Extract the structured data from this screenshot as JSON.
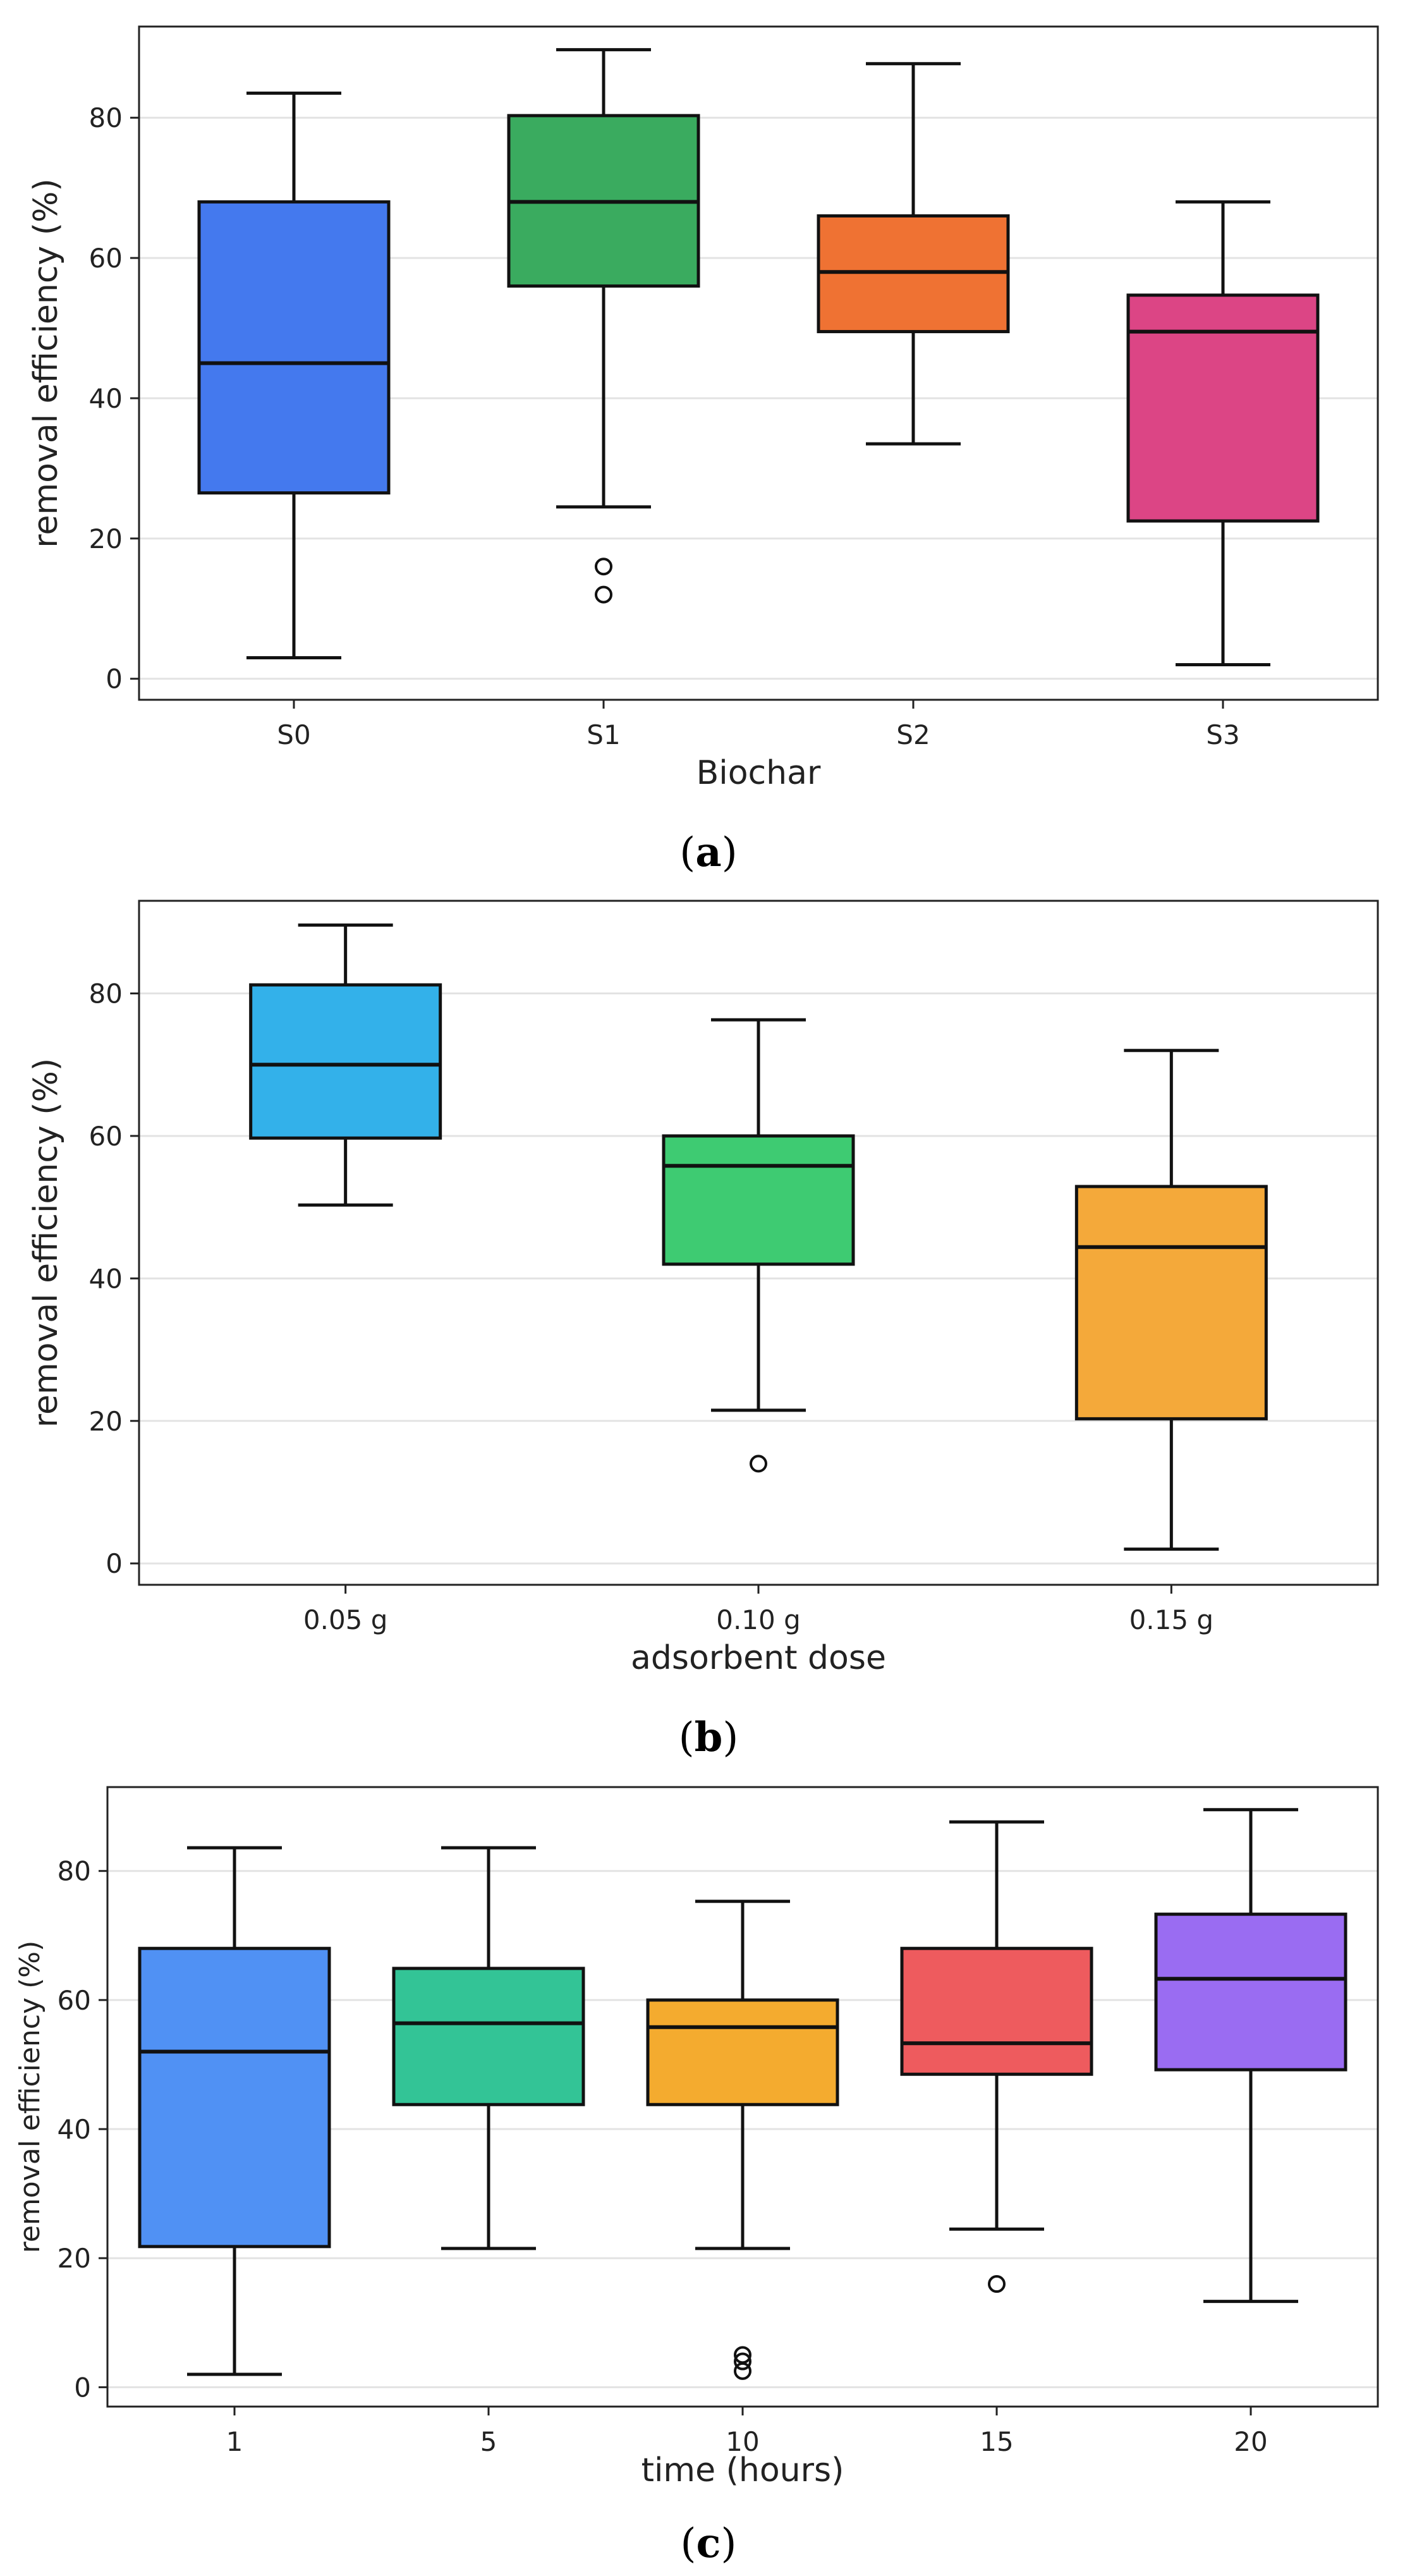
{
  "chart_data": [
    {
      "type": "boxplot",
      "panel": "a",
      "caption": "a",
      "xlabel": "Biochar",
      "ylabel": "removal efficiency (%)",
      "ylim": [
        -3,
        93
      ],
      "yticks": [
        0,
        20,
        40,
        60,
        80
      ],
      "grid": "horizontal",
      "boxes": [
        {
          "label": "S0",
          "color": "#4479ee",
          "whisker_low": 3,
          "q1": 26.5,
          "median": 45,
          "q3": 68,
          "whisker_high": 83.5,
          "outliers": []
        },
        {
          "label": "S1",
          "color": "#3aab5f",
          "whisker_low": 24.5,
          "q1": 56,
          "median": 68,
          "q3": 80.3,
          "whisker_high": 89.7,
          "outliers": [
            16,
            12
          ]
        },
        {
          "label": "S2",
          "color": "#ef7233",
          "whisker_low": 33.5,
          "q1": 49.5,
          "median": 58,
          "q3": 66,
          "whisker_high": 87.7,
          "outliers": []
        },
        {
          "label": "S3",
          "color": "#dc4585",
          "whisker_low": 2,
          "q1": 22.5,
          "median": 49.5,
          "q3": 54.7,
          "whisker_high": 68,
          "outliers": []
        }
      ]
    },
    {
      "type": "boxplot",
      "panel": "b",
      "caption": "b",
      "xlabel": "adsorbent dose",
      "ylabel": "removal efficiency (%)",
      "ylim": [
        -3,
        93
      ],
      "yticks": [
        0,
        20,
        40,
        60,
        80
      ],
      "grid": "horizontal",
      "boxes": [
        {
          "label": "0.05 g",
          "color": "#33b1ea",
          "whisker_low": 50.3,
          "q1": 59.7,
          "median": 70,
          "q3": 81.2,
          "whisker_high": 89.6,
          "outliers": []
        },
        {
          "label": "0.10 g",
          "color": "#3ecb72",
          "whisker_low": 21.5,
          "q1": 42,
          "median": 55.8,
          "q3": 60,
          "whisker_high": 76.3,
          "outliers": [
            14
          ]
        },
        {
          "label": "0.15 g",
          "color": "#f4a93a",
          "whisker_low": 2,
          "q1": 20.3,
          "median": 44.4,
          "q3": 52.9,
          "whisker_high": 72,
          "outliers": []
        }
      ]
    },
    {
      "type": "boxplot",
      "panel": "c",
      "caption": "c",
      "xlabel": "time (hours)",
      "ylabel": "removal efficiency (%)",
      "ylim": [
        -3,
        93
      ],
      "yticks": [
        0,
        20,
        40,
        60,
        80
      ],
      "grid": "horizontal",
      "boxes": [
        {
          "label": "1",
          "color": "#5091f4",
          "whisker_low": 2,
          "q1": 21.8,
          "median": 52,
          "q3": 68,
          "whisker_high": 83.6,
          "outliers": []
        },
        {
          "label": "5",
          "color": "#33c496",
          "whisker_low": 21.5,
          "q1": 43.8,
          "median": 56.4,
          "q3": 64.9,
          "whisker_high": 83.6,
          "outliers": []
        },
        {
          "label": "10",
          "color": "#f4ab2f",
          "whisker_low": 21.5,
          "q1": 43.8,
          "median": 55.8,
          "q3": 60,
          "whisker_high": 75.3,
          "outliers": [
            5,
            4,
            2.5
          ]
        },
        {
          "label": "15",
          "color": "#ee5b5e",
          "whisker_low": 24.5,
          "q1": 48.5,
          "median": 53.3,
          "q3": 68,
          "whisker_high": 87.6,
          "outliers": [
            16
          ]
        },
        {
          "label": "20",
          "color": "#9a6cf2",
          "whisker_low": 13.3,
          "q1": 49.2,
          "median": 63.3,
          "q3": 73.3,
          "whisker_high": 89.5,
          "outliers": []
        }
      ]
    }
  ]
}
